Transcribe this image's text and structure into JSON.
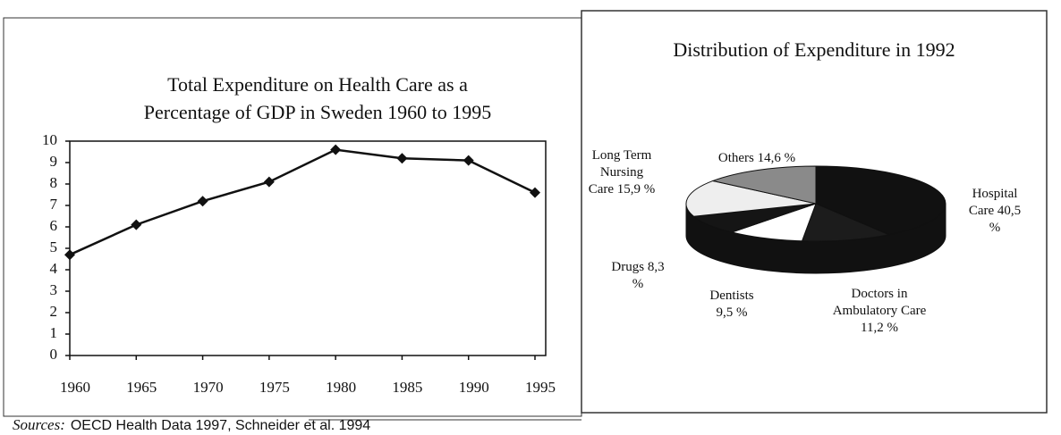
{
  "chart_data": [
    {
      "type": "line",
      "title": "Total Expenditure on Health Care as a",
      "subtitle": "Percentage of GDP in Sweden 1960 to 1995",
      "x": [
        1960,
        1965,
        1970,
        1975,
        1980,
        1985,
        1990,
        1995
      ],
      "series": [
        {
          "color": "#111111",
          "values": [
            4.7,
            6.1,
            7.2,
            8.1,
            9.6,
            9.2,
            9.1,
            7.6
          ]
        }
      ],
      "xlim": [
        1960,
        1995
      ],
      "xticks": [
        1960,
        1965,
        1970,
        1975,
        1980,
        1985,
        1990,
        1995
      ],
      "ylim": [
        0,
        10
      ],
      "yticks": [
        0,
        1,
        2,
        3,
        4,
        5,
        6,
        7,
        8,
        9,
        10
      ]
    },
    {
      "type": "pie",
      "title": "Distribution of Expenditure in 1992",
      "categories": [
        "Hospital Care",
        "Doctors in Ambulatory Care",
        "Dentists",
        "Drugs",
        "Long Term Nursing Care",
        "Others"
      ],
      "values": [
        40.5,
        11.2,
        9.5,
        8.3,
        15.9,
        14.6
      ],
      "value_labels": [
        "40,5 %",
        "11,2 %",
        "9,5 %",
        "8,3 %",
        "15,9 %",
        "14,6 %"
      ],
      "colors": [
        "#111111",
        "#1c1c1c",
        "#ffffff",
        "#151515",
        "#eeeeee",
        "#8a8a8a"
      ]
    }
  ],
  "footer": {
    "source_label": "Sources:",
    "source": "OECD Health Data 1997, Schneider et al. 1994"
  }
}
